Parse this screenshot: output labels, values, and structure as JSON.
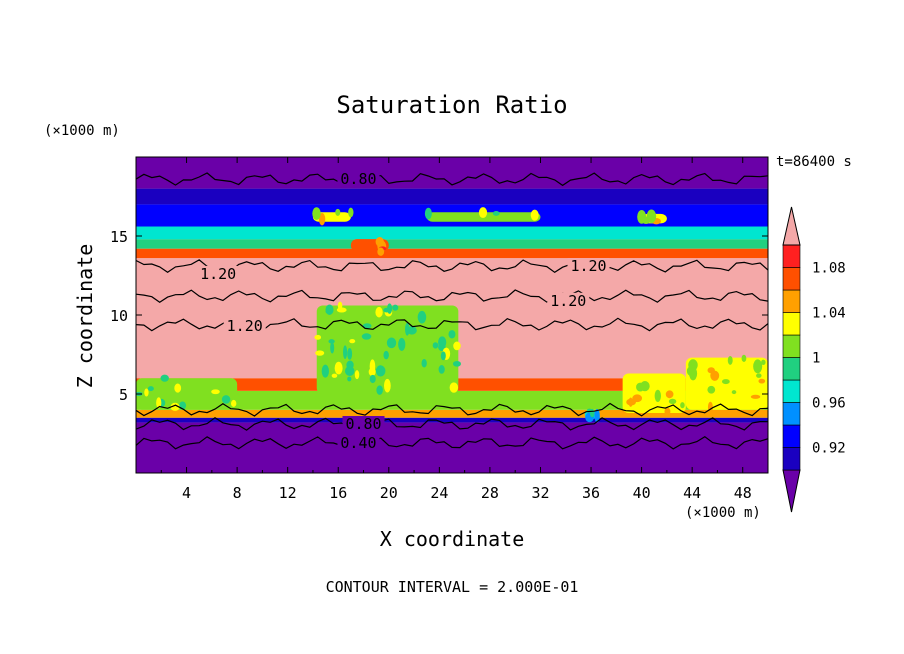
{
  "chart_data": {
    "type": "heatmap",
    "title": "Saturation Ratio",
    "xlabel": "X coordinate",
    "ylabel": "Z coordinate",
    "x_unit": "(×1000 m)",
    "y_unit": "(×1000 m)",
    "time_label": "t=86400 s",
    "footer": "CONTOUR INTERVAL = 2.000E-01",
    "xlim": [
      0,
      50
    ],
    "ylim": [
      0,
      20
    ],
    "x_ticks": [
      4,
      8,
      12,
      16,
      20,
      24,
      28,
      32,
      36,
      40,
      44,
      48
    ],
    "y_ticks": [
      5,
      10,
      15
    ],
    "colorbar": {
      "levels": [
        0.9,
        0.92,
        0.94,
        0.96,
        0.98,
        1.0,
        1.02,
        1.04,
        1.06,
        1.08,
        1.1
      ],
      "labels": [
        "0.92",
        "0.96",
        "1",
        "1.04",
        "1.08"
      ],
      "label_values": [
        0.92,
        0.96,
        1.0,
        1.04,
        1.08
      ],
      "colors": [
        "#6a00a8",
        "#1a00c0",
        "#0000ff",
        "#0090ff",
        "#00e6d0",
        "#20d080",
        "#80e020",
        "#ffff00",
        "#ffa000",
        "#ff5000",
        "#ff2020",
        "#f4a8a8"
      ]
    },
    "contour_labels": [
      {
        "text": "0.80",
        "x": 17.6,
        "y": 18.6
      },
      {
        "text": "1.20",
        "x": 6.5,
        "y": 12.6
      },
      {
        "text": "1.20",
        "x": 35.8,
        "y": 13.1
      },
      {
        "text": "1.20",
        "x": 34.2,
        "y": 10.9
      },
      {
        "text": "1.20",
        "x": 8.6,
        "y": 9.3
      },
      {
        "text": "0.80",
        "x": 18.0,
        "y": 3.1
      },
      {
        "text": "0.40",
        "x": 17.6,
        "y": 1.9
      }
    ],
    "bands": [
      {
        "z0": 0.0,
        "z1": 3.2,
        "value": 0.85
      },
      {
        "z0": 3.2,
        "z1": 3.5,
        "value": 0.91
      },
      {
        "z0": 3.5,
        "z1": 4.0,
        "value": 1.04
      },
      {
        "z0": 4.0,
        "z1": 5.2,
        "value": 1.0
      },
      {
        "z0": 5.2,
        "z1": 6.0,
        "value": 1.06
      },
      {
        "z0": 6.0,
        "z1": 13.6,
        "value": 1.2
      },
      {
        "z0": 13.6,
        "z1": 14.2,
        "value": 1.06
      },
      {
        "z0": 14.2,
        "z1": 14.8,
        "value": 0.98
      },
      {
        "z0": 14.8,
        "z1": 15.6,
        "value": 0.96
      },
      {
        "z0": 15.6,
        "z1": 17.0,
        "value": 0.93
      },
      {
        "z0": 17.0,
        "z1": 18.0,
        "value": 0.91
      },
      {
        "z0": 18.0,
        "z1": 20.0,
        "value": 0.85
      }
    ],
    "patches": [
      {
        "x0": 14.3,
        "x1": 25.5,
        "z0": 5.0,
        "z1": 10.6,
        "value": 1.0
      },
      {
        "x0": 38.5,
        "x1": 43.5,
        "z0": 3.8,
        "z1": 6.3,
        "value": 1.02
      },
      {
        "x0": 43.5,
        "x1": 50.0,
        "z0": 4.0,
        "z1": 7.3,
        "value": 1.02
      },
      {
        "x0": 0.0,
        "x1": 8.0,
        "z0": 4.0,
        "z1": 6.0,
        "value": 1.0
      },
      {
        "x0": 35.5,
        "x1": 36.5,
        "z0": 3.4,
        "z1": 4.0,
        "value": 0.96
      },
      {
        "x0": 14.0,
        "x1": 17.0,
        "z0": 15.9,
        "z1": 16.5,
        "value": 1.02
      },
      {
        "x0": 23.0,
        "x1": 32.0,
        "z0": 15.9,
        "z1": 16.5,
        "value": 1.0
      },
      {
        "x0": 40.0,
        "x1": 42.0,
        "z0": 15.8,
        "z1": 16.4,
        "value": 1.02
      },
      {
        "x0": 17.0,
        "x1": 20.0,
        "z0": 14.0,
        "z1": 14.8,
        "value": 1.06
      }
    ]
  }
}
